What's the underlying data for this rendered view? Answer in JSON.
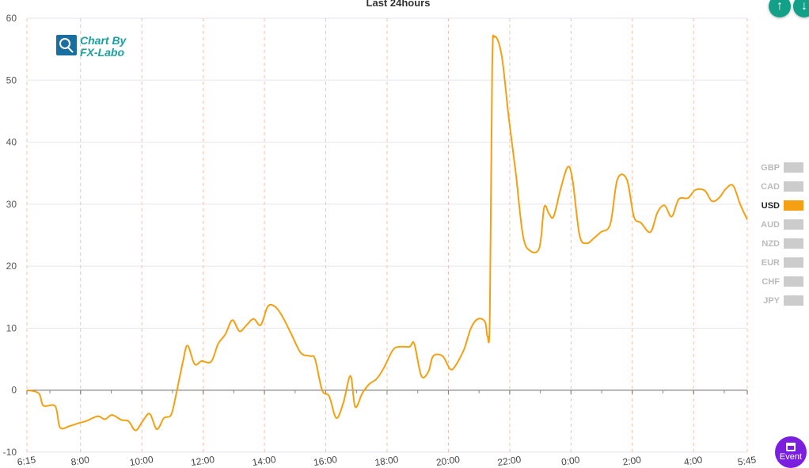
{
  "chart_data": {
    "type": "line",
    "title": "Last 24hours",
    "ylim": [
      -10,
      60
    ],
    "yticks": [
      -10,
      0,
      10,
      20,
      30,
      40,
      50,
      60
    ],
    "xtick_labels": [
      "6:15",
      "8:00",
      "10:00",
      "12:00",
      "14:00",
      "16:00",
      "18:00",
      "20:00",
      "22:00",
      "0:00",
      "2:00",
      "4:00",
      "5:45"
    ],
    "grid": true,
    "legend_position": "right",
    "series": [
      {
        "name": "USD",
        "color": "#f5a013",
        "values": [
          [
            0,
            0
          ],
          [
            0.25,
            -0.5
          ],
          [
            0.35,
            -2.5
          ],
          [
            0.6,
            -2.6
          ],
          [
            0.7,
            -6
          ],
          [
            0.9,
            -5.8
          ],
          [
            1.1,
            -5.3
          ],
          [
            1.25,
            -5
          ],
          [
            1.5,
            -4.2
          ],
          [
            1.65,
            -4.7
          ],
          [
            1.8,
            -4
          ],
          [
            2.0,
            -4.8
          ],
          [
            2.15,
            -5
          ],
          [
            2.3,
            -6.5
          ],
          [
            2.45,
            -5
          ],
          [
            2.6,
            -3.8
          ],
          [
            2.75,
            -6.3
          ],
          [
            2.9,
            -4.5
          ],
          [
            3.05,
            -4
          ],
          [
            3.15,
            -1
          ],
          [
            3.3,
            4.5
          ],
          [
            3.4,
            7.2
          ],
          [
            3.55,
            4.2
          ],
          [
            3.7,
            4.7
          ],
          [
            3.9,
            4.6
          ],
          [
            4.05,
            7.5
          ],
          [
            4.2,
            9
          ],
          [
            4.35,
            11.3
          ],
          [
            4.5,
            9.5
          ],
          [
            4.65,
            10.5
          ],
          [
            4.8,
            11.5
          ],
          [
            4.95,
            10.5
          ],
          [
            5.1,
            13.5
          ],
          [
            5.25,
            13.5
          ],
          [
            5.4,
            12
          ],
          [
            5.6,
            9
          ],
          [
            5.8,
            6
          ],
          [
            6.0,
            5.5
          ],
          [
            6.1,
            5
          ],
          [
            6.25,
            0
          ],
          [
            6.4,
            -1
          ],
          [
            6.55,
            -4.5
          ],
          [
            6.7,
            -2
          ],
          [
            6.85,
            2.3
          ],
          [
            6.95,
            -2.7
          ],
          [
            7.1,
            -0.5
          ],
          [
            7.25,
            1
          ],
          [
            7.4,
            1.8
          ],
          [
            7.55,
            3.5
          ],
          [
            7.75,
            6.5
          ],
          [
            7.9,
            7
          ],
          [
            8.1,
            7
          ],
          [
            8.2,
            7.5
          ],
          [
            8.35,
            2.3
          ],
          [
            8.5,
            3
          ],
          [
            8.6,
            5.5
          ],
          [
            8.8,
            5.5
          ],
          [
            8.95,
            3.5
          ],
          [
            9.05,
            3.7
          ],
          [
            9.25,
            6.5
          ],
          [
            9.4,
            10
          ],
          [
            9.55,
            11.5
          ],
          [
            9.7,
            11
          ],
          [
            9.75,
            8.7
          ],
          [
            9.8,
            12
          ],
          [
            9.85,
            52
          ],
          [
            9.9,
            57
          ],
          [
            10.05,
            54
          ],
          [
            10.2,
            44
          ],
          [
            10.35,
            35
          ],
          [
            10.5,
            25
          ],
          [
            10.65,
            22.5
          ],
          [
            10.85,
            23
          ],
          [
            10.95,
            29.5
          ],
          [
            11.05,
            28.5
          ],
          [
            11.15,
            28
          ],
          [
            11.3,
            32.5
          ],
          [
            11.45,
            36
          ],
          [
            11.55,
            34
          ],
          [
            11.7,
            25
          ],
          [
            11.85,
            23.7
          ],
          [
            12.0,
            24.5
          ],
          [
            12.15,
            25.5
          ],
          [
            12.35,
            26.8
          ],
          [
            12.5,
            34
          ],
          [
            12.7,
            34
          ],
          [
            12.85,
            28
          ],
          [
            13.0,
            27
          ],
          [
            13.2,
            25.5
          ],
          [
            13.35,
            28.7
          ],
          [
            13.5,
            29.8
          ],
          [
            13.65,
            28
          ],
          [
            13.8,
            30.8
          ],
          [
            14.0,
            31
          ],
          [
            14.15,
            32.3
          ],
          [
            14.35,
            32.2
          ],
          [
            14.5,
            30.5
          ],
          [
            14.65,
            31
          ],
          [
            14.8,
            32.5
          ],
          [
            14.95,
            33
          ],
          [
            15.1,
            30
          ],
          [
            15.25,
            27.5
          ]
        ]
      }
    ],
    "legend": [
      {
        "label": "GBP",
        "active": false,
        "color": "#cccccc"
      },
      {
        "label": "CAD",
        "active": false,
        "color": "#cccccc"
      },
      {
        "label": "USD",
        "active": true,
        "color": "#f5a013"
      },
      {
        "label": "AUD",
        "active": false,
        "color": "#cccccc"
      },
      {
        "label": "NZD",
        "active": false,
        "color": "#cccccc"
      },
      {
        "label": "EUR",
        "active": false,
        "color": "#cccccc"
      },
      {
        "label": "CHF",
        "active": false,
        "color": "#cccccc"
      },
      {
        "label": "JPY",
        "active": false,
        "color": "#cccccc"
      }
    ]
  },
  "watermark": {
    "line1": "Chart By",
    "line2": "FX-Labo"
  },
  "controls": {
    "event_label": "Event",
    "icon_1": "upload-icon",
    "icon_2": "download-icon"
  }
}
